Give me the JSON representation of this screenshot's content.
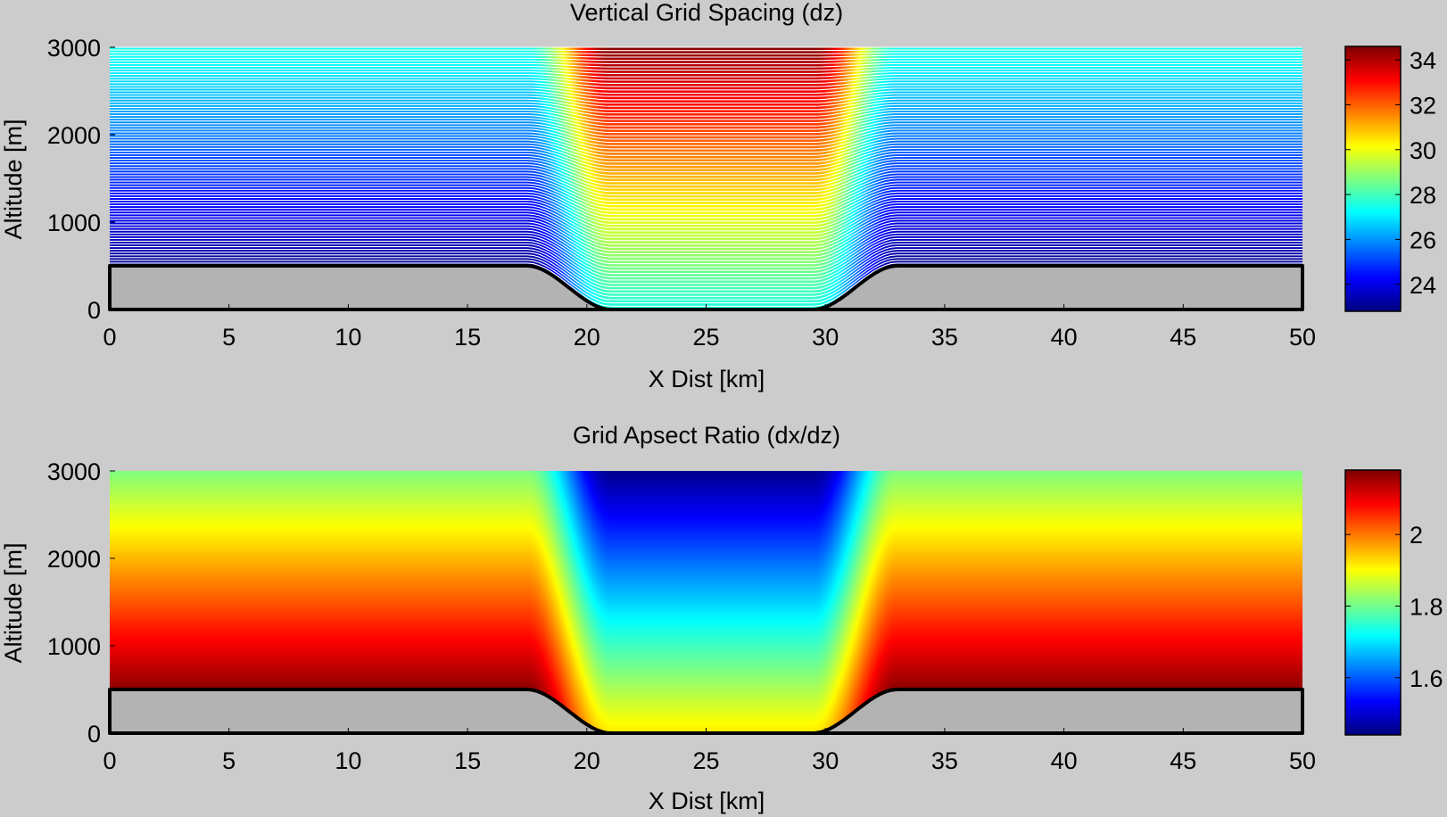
{
  "chart_data": [
    {
      "type": "heatmap",
      "title": "Vertical Grid Spacing (dz)",
      "xlabel": "X Dist [km]",
      "ylabel": "Altitude [m]",
      "xlim": [
        0,
        50
      ],
      "ylim": [
        0,
        3000
      ],
      "xticks": [
        0,
        5,
        10,
        15,
        20,
        25,
        30,
        35,
        40,
        45,
        50
      ],
      "yticks": [
        0,
        1000,
        2000,
        3000
      ],
      "colormap": "jet",
      "clim": [
        22.8,
        34.6
      ],
      "colorbar_ticks": [
        24,
        26,
        28,
        30,
        32,
        34
      ],
      "terrain": {
        "type": "valley",
        "plateau_height_m": 500,
        "valley_floor_m": 0,
        "left_wall_km": [
          17.5,
          21.0
        ],
        "right_wall_km": [
          29.5,
          33.0
        ],
        "fill": "#b3b3b3"
      },
      "grid_lines": {
        "shown": true,
        "color": "#ffffff",
        "count": 80
      },
      "field": {
        "outside_valley": {
          "bottom": 23.0,
          "top": 27.5
        },
        "inside_valley": {
          "bottom": 27.5,
          "top": 34.5
        }
      }
    },
    {
      "type": "heatmap",
      "title": "Grid Apsect Ratio (dx/dz)",
      "xlabel": "X Dist [km]",
      "ylabel": "Altitude [m]",
      "xlim": [
        0,
        50
      ],
      "ylim": [
        0,
        3000
      ],
      "xticks": [
        0,
        5,
        10,
        15,
        20,
        25,
        30,
        35,
        40,
        45,
        50
      ],
      "yticks": [
        0,
        1000,
        2000,
        3000
      ],
      "colormap": "jet",
      "clim": [
        1.44,
        2.18
      ],
      "colorbar_ticks": [
        "1.6",
        "1.8",
        "2"
      ],
      "terrain": {
        "type": "valley",
        "plateau_height_m": 500,
        "valley_floor_m": 0,
        "left_wall_km": [
          17.5,
          21.0
        ],
        "right_wall_km": [
          29.5,
          33.0
        ],
        "fill": "#b3b3b3"
      },
      "grid_lines": {
        "shown": false
      },
      "field": {
        "outside_valley": {
          "bottom": 2.17,
          "top": 1.81
        },
        "inside_valley": {
          "bottom": 1.92,
          "top": 1.45
        }
      }
    }
  ]
}
